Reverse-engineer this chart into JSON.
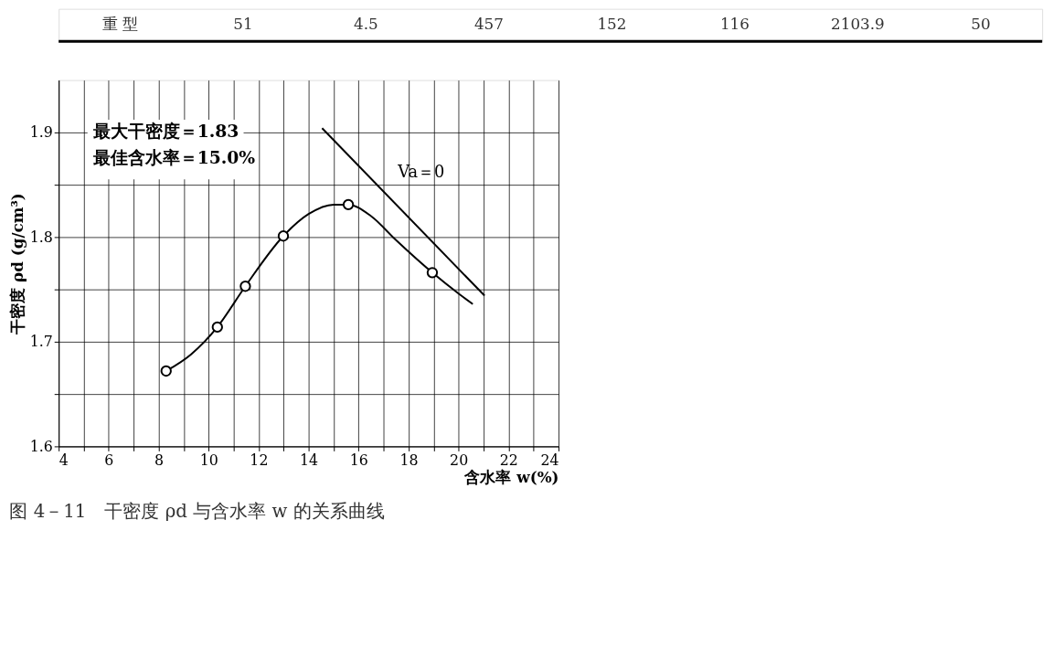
{
  "chart_data": {
    "type": "scatter",
    "title": "图 4－11　干密度 ρd 与含水率 w 的关系曲线",
    "xlabel": "含水率 w(%)",
    "ylabel": "干密度 ρd (g/cm³)",
    "xlim": [
      4,
      24
    ],
    "ylim": [
      1.6,
      1.95
    ],
    "xticks": [
      4,
      {
        "value": 5,
        "label": null
      },
      6,
      {
        "value": 7,
        "label": null
      },
      8,
      {
        "value": 9,
        "label": null
      },
      10,
      {
        "value": 11,
        "label": null
      },
      12,
      {
        "value": 13,
        "label": null
      },
      14,
      {
        "value": 15,
        "label": null
      },
      16,
      {
        "value": 17,
        "label": null
      },
      18,
      {
        "value": 19,
        "label": null
      },
      20,
      {
        "value": 21,
        "label": null
      },
      22,
      {
        "value": 23,
        "label": null
      },
      24
    ],
    "yticks": [
      1.6,
      {
        "value": 1.65,
        "label": null
      },
      1.7,
      {
        "value": 1.75,
        "label": null
      },
      1.8,
      {
        "value": 1.85,
        "label": null
      },
      1.9
    ],
    "grid": true,
    "line_style": "solid",
    "series": [
      {
        "type": "line",
        "color": "#000000",
        "x": [
          8.3,
          9.3,
          10.35,
          11.47,
          12.99,
          14.0,
          15.0,
          15.59,
          16.5,
          17.5,
          18.95,
          20.0,
          20.57
        ],
        "values": [
          1.672,
          1.688,
          1.714,
          1.753,
          1.801,
          1.822,
          1.831,
          1.831,
          1.82,
          1.797,
          1.766,
          1.746,
          1.736
        ]
      },
      {
        "marker": "circle",
        "color": "#000000",
        "x": [
          8.3,
          10.35,
          11.47,
          12.99,
          15.59,
          18.95
        ],
        "values": [
          1.672,
          1.714,
          1.753,
          1.801,
          1.831,
          1.766
        ]
      },
      {
        "type": "line",
        "name": "Va＝0",
        "color": "#000000",
        "x": [
          14.54,
          21.04
        ],
        "values": [
          1.904,
          1.744
        ]
      }
    ],
    "annotations": [
      "重 型",
      "51",
      "4.5",
      "457",
      "152",
      "116",
      "2103.9",
      "50",
      "最大干密度＝1.83",
      "最佳含水率＝15.0%"
    ]
  }
}
